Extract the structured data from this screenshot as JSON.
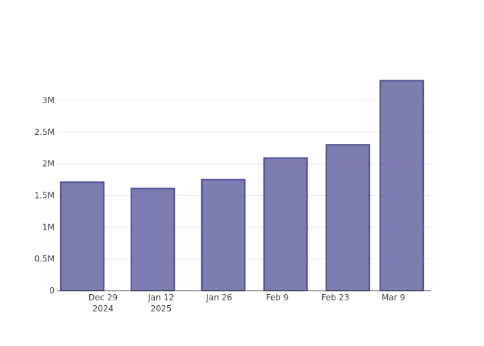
{
  "chart_data": {
    "type": "bar",
    "x": [
      "2024-12-24",
      "2025-01-10",
      "2025-01-27",
      "2025-02-11",
      "2025-02-26",
      "2025-03-11"
    ],
    "values": [
      1710000,
      1610000,
      1750000,
      2090000,
      2300000,
      3310000
    ],
    "color": "rgb(63,61,138)",
    "xlim": [
      "2024-12-18",
      "2025-03-18"
    ],
    "xticks": [
      {
        "value": "2024-12-29",
        "label": "Dec 29\n2024"
      },
      {
        "value": "2025-01-12",
        "label": "Jan 12\n2025"
      },
      {
        "value": "2025-01-26",
        "label": "Jan 26"
      },
      {
        "value": "2025-02-09",
        "label": "Feb 9"
      },
      {
        "value": "2025-02-23",
        "label": "Feb 23"
      },
      {
        "value": "2025-03-09",
        "label": "Mar 9"
      }
    ],
    "ylim": [
      0,
      3490000
    ],
    "yticks": [
      0,
      {
        "value": 500000,
        "label": "0.5M"
      },
      {
        "value": 1000000,
        "label": "1M"
      },
      {
        "value": 1500000,
        "label": "1.5M"
      },
      {
        "value": 2000000,
        "label": "2M"
      },
      {
        "value": 2500000,
        "label": "2.5M"
      },
      {
        "value": 3000000,
        "label": "3M"
      }
    ],
    "grid": true
  }
}
